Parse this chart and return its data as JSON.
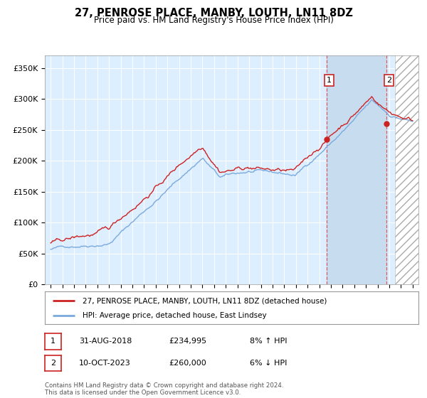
{
  "title": "27, PENROSE PLACE, MANBY, LOUTH, LN11 8DZ",
  "subtitle": "Price paid vs. HM Land Registry's House Price Index (HPI)",
  "ylim": [
    0,
    370000
  ],
  "yticks": [
    0,
    50000,
    100000,
    150000,
    200000,
    250000,
    300000,
    350000
  ],
  "ytick_labels": [
    "£0",
    "£50K",
    "£100K",
    "£150K",
    "£200K",
    "£250K",
    "£300K",
    "£350K"
  ],
  "hpi_color": "#7aaadd",
  "price_color": "#cc2222",
  "bg_color": "#ddeeff",
  "highlight_color": "#c8dcf0",
  "sale1_date": 2018.667,
  "sale1_price": 234995,
  "sale1_label": "1",
  "sale2_date": 2023.783,
  "sale2_price": 260000,
  "sale2_label": "2",
  "legend_line1": "27, PENROSE PLACE, MANBY, LOUTH, LN11 8DZ (detached house)",
  "legend_line2": "HPI: Average price, detached house, East Lindsey",
  "table_row1": [
    "1",
    "31-AUG-2018",
    "£234,995",
    "8% ↑ HPI"
  ],
  "table_row2": [
    "2",
    "10-OCT-2023",
    "£260,000",
    "6% ↓ HPI"
  ],
  "footnote": "Contains HM Land Registry data © Crown copyright and database right 2024.\nThis data is licensed under the Open Government Licence v3.0.",
  "xmin": 1995,
  "xmax": 2026,
  "future_start": 2024.5,
  "np_seed": 42
}
